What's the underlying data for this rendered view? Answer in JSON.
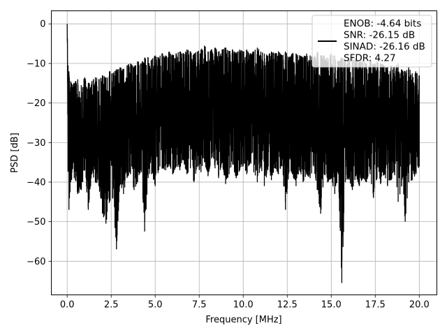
{
  "chart_data": {
    "type": "line",
    "title": "",
    "xlabel": "Frequency [MHz]",
    "ylabel": "PSD [dB]",
    "xlim": [
      -0.9,
      21.0
    ],
    "ylim": [
      -68.5,
      3.3
    ],
    "grid": true,
    "legend_placement": "top-right",
    "x_ticks": [
      {
        "value": 0.0,
        "label": "0.0"
      },
      {
        "value": 2.5,
        "label": "2.5"
      },
      {
        "value": 5.0,
        "label": "5.0"
      },
      {
        "value": 7.5,
        "label": "7.5"
      },
      {
        "value": 10.0,
        "label": "10.0"
      },
      {
        "value": 12.5,
        "label": "12.5"
      },
      {
        "value": 15.0,
        "label": "15.0"
      },
      {
        "value": 17.5,
        "label": "17.5"
      },
      {
        "value": 20.0,
        "label": "20.0"
      }
    ],
    "y_ticks": [
      {
        "value": 0,
        "label": "0"
      },
      {
        "value": -10,
        "label": "−10"
      },
      {
        "value": -20,
        "label": "−20"
      },
      {
        "value": -30,
        "label": "−30"
      },
      {
        "value": -40,
        "label": "−40"
      },
      {
        "value": -50,
        "label": "−50"
      },
      {
        "value": -60,
        "label": "−60"
      }
    ],
    "legend": {
      "entries": [
        "ENOB: -4.64 bits",
        "SNR: -26.15 dB",
        "SINAD: -26.16 dB",
        "SFDR: 4.27"
      ],
      "line_color": "#000000"
    },
    "series": [
      {
        "color": "#000000",
        "x": [
          0.0,
          0.05,
          0.1,
          0.2,
          0.4,
          0.6,
          0.8,
          1.0,
          1.2,
          1.4,
          1.6,
          1.8,
          2.0,
          2.2,
          2.4,
          2.6,
          2.8,
          3.0,
          3.2,
          3.4,
          3.6,
          3.8,
          4.0,
          4.2,
          4.4,
          4.6,
          4.8,
          5.0,
          5.2,
          5.4,
          5.6,
          5.8,
          6.0,
          6.2,
          6.4,
          6.6,
          6.8,
          7.0,
          7.2,
          7.4,
          7.6,
          7.8,
          8.0,
          8.2,
          8.4,
          8.6,
          8.8,
          9.0,
          9.2,
          9.4,
          9.6,
          9.8,
          10.0,
          10.2,
          10.4,
          10.6,
          10.8,
          11.0,
          11.2,
          11.4,
          11.6,
          11.8,
          12.0,
          12.2,
          12.4,
          12.6,
          12.8,
          13.0,
          13.2,
          13.4,
          13.6,
          13.8,
          14.0,
          14.2,
          14.4,
          14.6,
          14.8,
          15.0,
          15.2,
          15.4,
          15.6,
          15.8,
          16.0,
          16.2,
          16.4,
          16.6,
          16.8,
          17.0,
          17.2,
          17.4,
          17.6,
          17.8,
          18.0,
          18.2,
          18.4,
          18.6,
          18.8,
          19.0,
          19.2,
          19.4,
          19.6,
          19.8,
          20.0
        ],
        "upper": [
          0.0,
          -10.5,
          -12.0,
          -14.5,
          -15.0,
          -14.0,
          -15.5,
          -13.5,
          -15.0,
          -14.5,
          -13.5,
          -14.0,
          -13.0,
          -13.5,
          -12.0,
          -12.5,
          -11.5,
          -11.0,
          -11.5,
          -10.5,
          -10.0,
          -11.0,
          -9.5,
          -10.0,
          -8.5,
          -8.5,
          -9.0,
          -8.0,
          -8.5,
          -7.5,
          -8.0,
          -7.0,
          -8.0,
          -7.5,
          -7.0,
          -7.5,
          -6.5,
          -7.0,
          -7.5,
          -7.0,
          -6.5,
          -5.5,
          -7.0,
          -6.5,
          -6.0,
          -7.0,
          -6.5,
          -6.0,
          -7.0,
          -6.5,
          -7.5,
          -6.5,
          -7.0,
          -6.5,
          -7.5,
          -7.0,
          -6.0,
          -7.0,
          -7.5,
          -8.0,
          -7.0,
          -7.5,
          -7.0,
          -8.0,
          -7.0,
          -8.5,
          -7.5,
          -7.5,
          -8.0,
          -8.5,
          -7.5,
          -8.0,
          -8.5,
          -7.0,
          -8.0,
          -8.0,
          -8.5,
          -7.5,
          -8.0,
          -9.5,
          -8.5,
          -9.0,
          -9.0,
          -8.0,
          -9.0,
          -9.5,
          -9.0,
          -10.0,
          -9.0,
          -10.5,
          -9.5,
          -10.0,
          -10.5,
          -11.0,
          -10.5,
          -11.0,
          -10.0,
          -11.5,
          -12.0,
          -11.0,
          -12.5,
          -12.0,
          -13.0
        ],
        "lower": [
          0.0,
          -37.0,
          -47.0,
          -40.0,
          -39.0,
          -43.0,
          -42.0,
          -37.0,
          -47.0,
          -38.0,
          -40.0,
          -41.0,
          -48.0,
          -50.5,
          -45.0,
          -44.0,
          -57.0,
          -40.0,
          -43.0,
          -39.0,
          -38.0,
          -42.0,
          -40.0,
          -37.0,
          -52.5,
          -39.0,
          -38.0,
          -41.0,
          -37.0,
          -36.5,
          -37.0,
          -35.5,
          -38.0,
          -36.0,
          -37.0,
          -34.5,
          -38.0,
          -36.5,
          -40.0,
          -36.0,
          -37.5,
          -35.0,
          -38.5,
          -34.0,
          -36.5,
          -39.0,
          -35.0,
          -40.5,
          -38.0,
          -35.5,
          -39.0,
          -37.0,
          -36.0,
          -38.0,
          -35.0,
          -37.5,
          -40.0,
          -36.0,
          -41.0,
          -37.0,
          -39.5,
          -36.5,
          -38.0,
          -36.0,
          -47.0,
          -37.5,
          -38.0,
          -41.0,
          -37.0,
          -40.0,
          -38.0,
          -39.0,
          -36.0,
          -42.0,
          -48.0,
          -38.0,
          -40.0,
          -39.0,
          -43.0,
          -38.0,
          -65.5,
          -40.0,
          -39.0,
          -42.0,
          -38.5,
          -41.0,
          -39.0,
          -40.0,
          -38.0,
          -44.0,
          -39.0,
          -40.5,
          -38.0,
          -41.0,
          -39.5,
          -38.0,
          -45.0,
          -41.0,
          -50.0,
          -40.0,
          -39.5,
          -38.0,
          -36.0
        ]
      }
    ]
  }
}
